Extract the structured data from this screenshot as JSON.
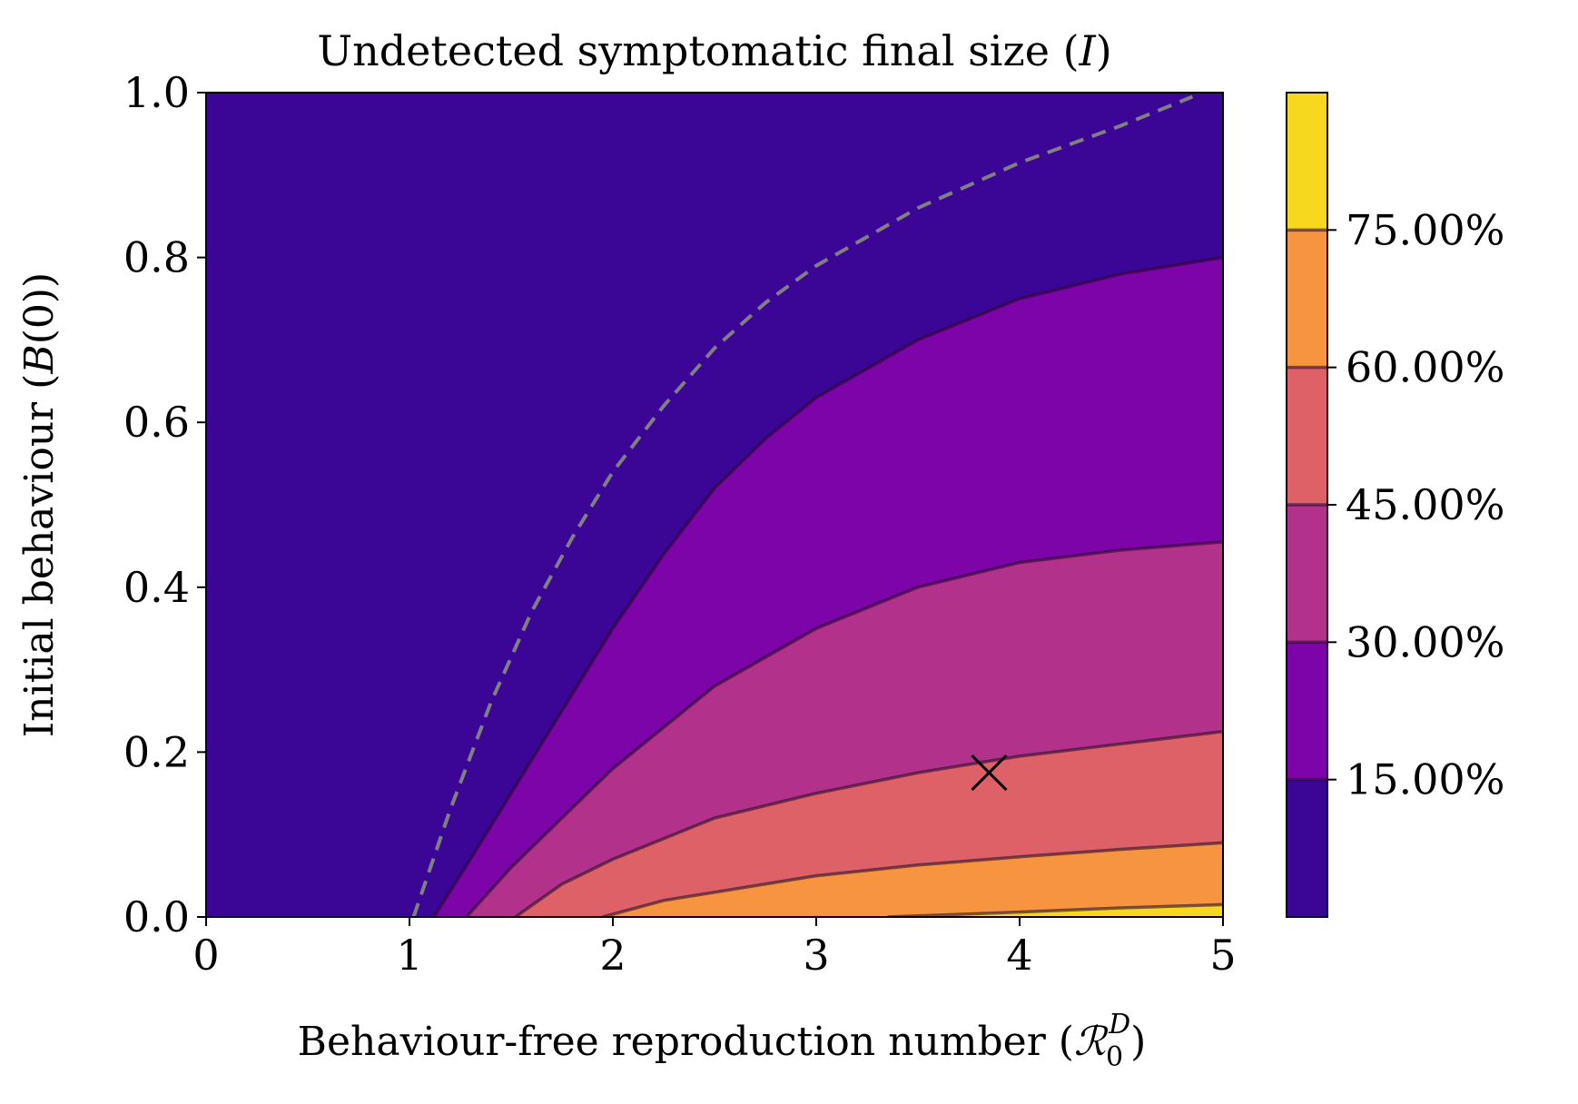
{
  "chart_data": {
    "type": "contourf",
    "title_text": "Undetected symptomatic final size (",
    "title_math": "I",
    "title_close": ")",
    "xlabel_text": "Behaviour-free reproduction number (",
    "xlabel_math": "ℛ",
    "xlabel_sub": "0",
    "xlabel_sup": "D",
    "xlabel_close": ")",
    "ylabel_text": "Initial behaviour (",
    "ylabel_math": "B",
    "ylabel_close": "(0))",
    "xlim": [
      0,
      5
    ],
    "ylim": [
      0,
      1
    ],
    "xticks": [
      0,
      1,
      2,
      3,
      4,
      5
    ],
    "xtick_labels": [
      "0",
      "1",
      "2",
      "3",
      "4",
      "5"
    ],
    "yticks": [
      0.0,
      0.2,
      0.4,
      0.6,
      0.8,
      1.0
    ],
    "ytick_labels": [
      "0.0",
      "0.2",
      "0.4",
      "0.6",
      "0.8",
      "1.0"
    ],
    "colorbar": {
      "range": [
        0,
        90
      ],
      "ticks": [
        15,
        30,
        45,
        60,
        75
      ],
      "tick_labels": [
        "15.00%",
        "30.00%",
        "45.00%",
        "60.00%",
        "75.00%"
      ],
      "band_colors": [
        "#3b0596",
        "#7c04a8",
        "#b2318a",
        "#dd6166",
        "#f7943f",
        "#f8d81f"
      ]
    },
    "contour_levels_pct": [
      15,
      30,
      45,
      60,
      75
    ],
    "contours": [
      {
        "level": 15,
        "points": [
          [
            1.12,
            0.0
          ],
          [
            1.3,
            0.07
          ],
          [
            1.5,
            0.15
          ],
          [
            1.75,
            0.25
          ],
          [
            2.0,
            0.35
          ],
          [
            2.25,
            0.44
          ],
          [
            2.5,
            0.52
          ],
          [
            2.75,
            0.58
          ],
          [
            3.0,
            0.63
          ],
          [
            3.5,
            0.7
          ],
          [
            4.0,
            0.75
          ],
          [
            4.5,
            0.78
          ],
          [
            5.0,
            0.8
          ]
        ]
      },
      {
        "level": 30,
        "points": [
          [
            1.28,
            0.0
          ],
          [
            1.5,
            0.06
          ],
          [
            1.75,
            0.12
          ],
          [
            2.0,
            0.18
          ],
          [
            2.5,
            0.28
          ],
          [
            3.0,
            0.35
          ],
          [
            3.5,
            0.4
          ],
          [
            4.0,
            0.43
          ],
          [
            4.5,
            0.445
          ],
          [
            5.0,
            0.455
          ]
        ]
      },
      {
        "level": 45,
        "points": [
          [
            1.52,
            0.0
          ],
          [
            1.75,
            0.04
          ],
          [
            2.0,
            0.07
          ],
          [
            2.5,
            0.12
          ],
          [
            3.0,
            0.15
          ],
          [
            3.5,
            0.175
          ],
          [
            4.0,
            0.195
          ],
          [
            4.5,
            0.21
          ],
          [
            5.0,
            0.225
          ]
        ]
      },
      {
        "level": 60,
        "points": [
          [
            1.95,
            0.0
          ],
          [
            2.25,
            0.02
          ],
          [
            2.5,
            0.03
          ],
          [
            3.0,
            0.05
          ],
          [
            3.5,
            0.063
          ],
          [
            4.0,
            0.073
          ],
          [
            4.5,
            0.082
          ],
          [
            5.0,
            0.09
          ]
        ]
      },
      {
        "level": 75,
        "points": [
          [
            3.35,
            0.0
          ],
          [
            4.0,
            0.006
          ],
          [
            4.5,
            0.011
          ],
          [
            5.0,
            0.015
          ]
        ]
      }
    ],
    "threshold_curve": {
      "style": "dashed",
      "color": "#808080",
      "points": [
        [
          1.02,
          0.0
        ],
        [
          1.2,
          0.13
        ],
        [
          1.4,
          0.26
        ],
        [
          1.6,
          0.37
        ],
        [
          1.8,
          0.46
        ],
        [
          2.0,
          0.54
        ],
        [
          2.25,
          0.62
        ],
        [
          2.5,
          0.69
        ],
        [
          2.75,
          0.745
        ],
        [
          3.0,
          0.79
        ],
        [
          3.5,
          0.86
        ],
        [
          4.0,
          0.915
        ],
        [
          4.5,
          0.96
        ],
        [
          4.85,
          0.995
        ]
      ]
    },
    "marker": {
      "x": 3.85,
      "y": 0.175,
      "symbol": "x"
    }
  }
}
